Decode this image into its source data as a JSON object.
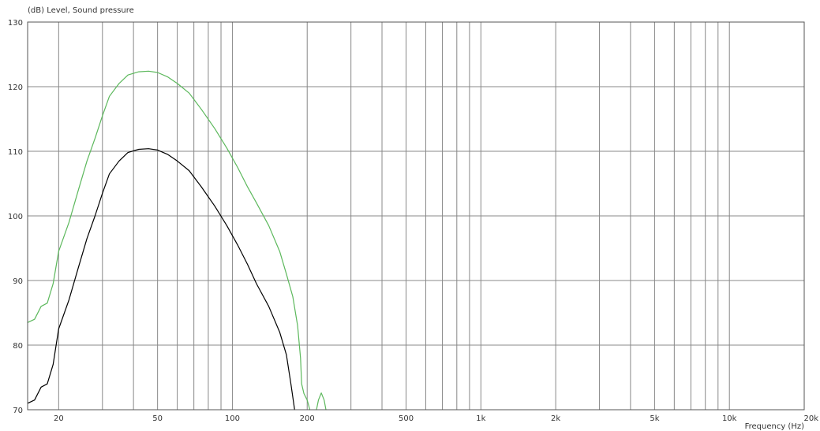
{
  "chart_data": {
    "type": "line",
    "ylabel": "(dB)  Level, Sound pressure",
    "xlabel": "Frequency  (Hz)",
    "x_scale": "log",
    "xlim": [
      15,
      20000
    ],
    "ylim": [
      70,
      130
    ],
    "y_ticks": [
      70,
      80,
      90,
      100,
      110,
      120,
      130
    ],
    "x_tick_labels": [
      {
        "value": 20,
        "label": "20"
      },
      {
        "value": 50,
        "label": "50"
      },
      {
        "value": 100,
        "label": "100"
      },
      {
        "value": 200,
        "label": "200"
      },
      {
        "value": 500,
        "label": "500"
      },
      {
        "value": 1000,
        "label": "1k"
      },
      {
        "value": 2000,
        "label": "2k"
      },
      {
        "value": 5000,
        "label": "5k"
      },
      {
        "value": 10000,
        "label": "10k"
      },
      {
        "value": 20000,
        "label": "20k"
      }
    ],
    "grid": true,
    "colors": {
      "green_series": "#5cb85c",
      "black_series": "#000000",
      "grid": "#888888"
    },
    "series": [
      {
        "color": "#5cb85c",
        "points": [
          [
            15,
            83.5
          ],
          [
            16,
            84.0
          ],
          [
            17,
            86.0
          ],
          [
            18,
            86.5
          ],
          [
            19,
            89.5
          ],
          [
            20,
            94.5
          ],
          [
            22,
            99.0
          ],
          [
            24,
            104.0
          ],
          [
            26,
            108.5
          ],
          [
            28,
            112.0
          ],
          [
            30,
            115.5
          ],
          [
            32,
            118.5
          ],
          [
            35,
            120.5
          ],
          [
            38,
            121.8
          ],
          [
            42,
            122.3
          ],
          [
            46,
            122.4
          ],
          [
            50,
            122.2
          ],
          [
            55,
            121.5
          ],
          [
            60,
            120.5
          ],
          [
            67,
            119.0
          ],
          [
            75,
            116.5
          ],
          [
            85,
            113.5
          ],
          [
            95,
            110.5
          ],
          [
            105,
            107.5
          ],
          [
            115,
            104.5
          ],
          [
            125,
            102.0
          ],
          [
            140,
            98.5
          ],
          [
            155,
            94.5
          ],
          [
            165,
            91.0
          ],
          [
            175,
            87.5
          ],
          [
            183,
            83.0
          ],
          [
            188,
            78.0
          ],
          [
            190,
            74.0
          ],
          [
            194,
            72.5
          ],
          [
            200,
            71.5
          ],
          [
            205,
            70.0
          ]
        ]
      },
      {
        "color": "#5cb85c",
        "points": [
          [
            218,
            70.0
          ],
          [
            222,
            71.5
          ],
          [
            228,
            72.6
          ],
          [
            234,
            71.5
          ],
          [
            238,
            70.0
          ]
        ]
      },
      {
        "color": "#000000",
        "points": [
          [
            15,
            71.0
          ],
          [
            16,
            71.5
          ],
          [
            17,
            73.5
          ],
          [
            18,
            74.0
          ],
          [
            19,
            77.0
          ],
          [
            20,
            82.5
          ],
          [
            22,
            87.0
          ],
          [
            24,
            92.0
          ],
          [
            26,
            96.5
          ],
          [
            28,
            100.0
          ],
          [
            30,
            103.5
          ],
          [
            32,
            106.5
          ],
          [
            35,
            108.5
          ],
          [
            38,
            109.8
          ],
          [
            42,
            110.3
          ],
          [
            46,
            110.4
          ],
          [
            50,
            110.2
          ],
          [
            55,
            109.5
          ],
          [
            60,
            108.5
          ],
          [
            67,
            107.0
          ],
          [
            75,
            104.5
          ],
          [
            85,
            101.5
          ],
          [
            95,
            98.5
          ],
          [
            105,
            95.5
          ],
          [
            115,
            92.5
          ],
          [
            125,
            89.5
          ],
          [
            140,
            86.0
          ],
          [
            155,
            82.0
          ],
          [
            165,
            78.5
          ],
          [
            172,
            74.0
          ],
          [
            178,
            70.0
          ]
        ]
      }
    ]
  }
}
